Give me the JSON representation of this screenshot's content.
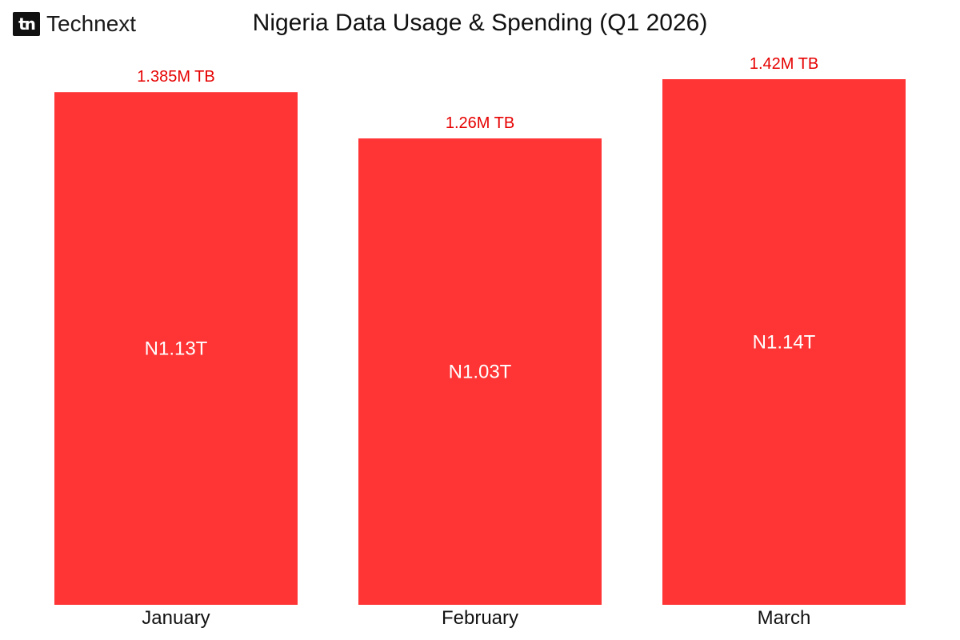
{
  "brand": {
    "logo_text": "tn",
    "name": "Technext"
  },
  "colors": {
    "bar": "#ff3435",
    "top_label": "#e60000",
    "inner_label": "#ffffff",
    "axis_text": "#111111"
  },
  "chart_data": {
    "type": "bar",
    "title": "Nigeria Data Usage & Spending (Q1 2026)",
    "xlabel": "",
    "ylabel": "",
    "categories": [
      "January",
      "February",
      "March"
    ],
    "series": [
      {
        "values": [
          1.385,
          1.26,
          1.42
        ],
        "labels": [
          "1.385M TB",
          "1.26M TB",
          "1.42M TB"
        ]
      },
      {
        "values": [
          1.13,
          1.03,
          1.14
        ],
        "labels": [
          "N1.13T",
          "N1.03T",
          "N1.14T"
        ]
      }
    ],
    "ylim": [
      0,
      1.42
    ],
    "grid": false
  }
}
